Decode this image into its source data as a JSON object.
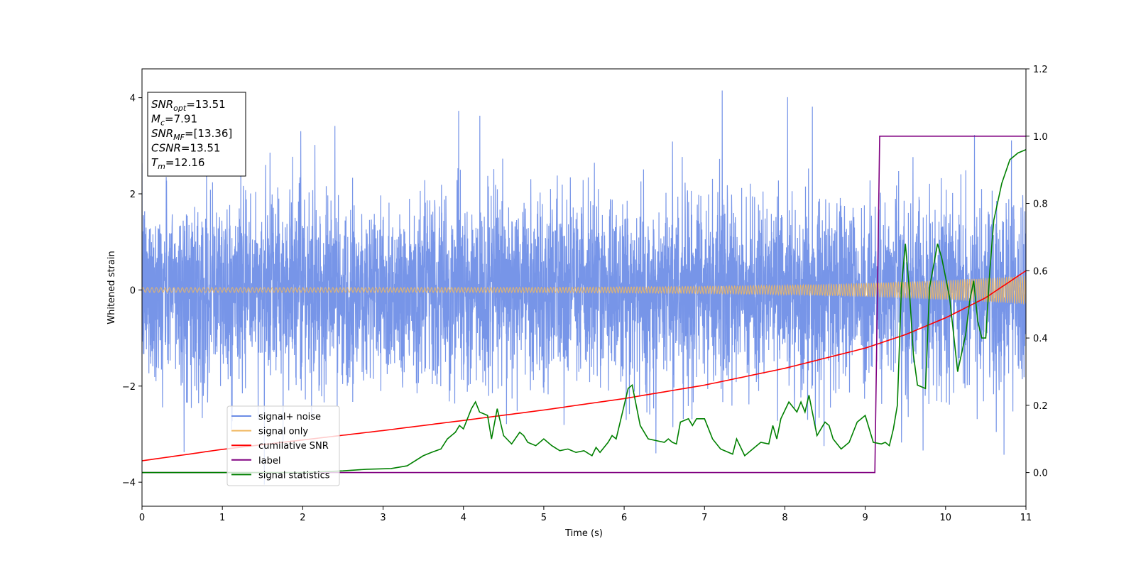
{
  "chart_data": {
    "type": "line",
    "xlabel": "Time (s)",
    "ylabel": "Whitened strain",
    "xlim": [
      0,
      11
    ],
    "ylim": [
      -4.5,
      4.6
    ],
    "y2lim": [
      -0.1,
      1.2
    ],
    "x_ticks": [
      "0",
      "1",
      "2",
      "3",
      "4",
      "5",
      "6",
      "7",
      "8",
      "9",
      "10",
      "11"
    ],
    "y_ticks": [
      "−4",
      "−2",
      "0",
      "2",
      "4"
    ],
    "y_tick_values": [
      -4,
      -2,
      0,
      2,
      4
    ],
    "y2_ticks": [
      "0.0",
      "0.2",
      "0.4",
      "0.6",
      "0.8",
      "1.0",
      "1.2"
    ],
    "y2_tick_values": [
      0,
      0.2,
      0.4,
      0.6,
      0.8,
      1.0,
      1.2
    ],
    "grid": false,
    "legend_position": "bottom-left",
    "colors": {
      "noise": "#6b8ce6",
      "signal": "#f0b860",
      "snr": "#ff0000",
      "label": "#800080",
      "stats": "#008000"
    },
    "stats_box": [
      {
        "sym": "SNR",
        "sub": "opt",
        "value": "=13.51"
      },
      {
        "sym": "M",
        "sub": "c",
        "value": "=7.91"
      },
      {
        "sym": "SNR",
        "sub": "MF",
        "value": "=[13.36]"
      },
      {
        "sym": "CSNR",
        "sub": "",
        "value": "=13.51"
      },
      {
        "sym": "T",
        "sub": "m",
        "value": "=12.16"
      }
    ],
    "series": [
      {
        "name": "signal+ noise",
        "axis": "left",
        "envelope": "noise, std ≈ 0.95, peaks ≈ ±4"
      },
      {
        "name": "signal only",
        "axis": "left",
        "envelope": "chirp, amplitude 0.05 at t=0 rising to 0.3 at t=11"
      },
      {
        "name": "cumilative SNR",
        "axis": "right",
        "x": [
          0,
          1,
          2,
          3,
          4,
          5,
          6,
          7,
          8,
          9,
          9.5,
          10,
          10.5,
          11
        ],
        "y": [
          0.035,
          0.069,
          0.097,
          0.125,
          0.155,
          0.186,
          0.22,
          0.26,
          0.31,
          0.37,
          0.41,
          0.46,
          0.52,
          0.6
        ]
      },
      {
        "name": "label",
        "axis": "right",
        "x": [
          0,
          9.12,
          9.18,
          11
        ],
        "y": [
          0,
          0,
          1,
          1
        ]
      },
      {
        "name": "signal statistics",
        "axis": "right",
        "x": [
          0,
          1,
          2,
          2.5,
          2.8,
          3.1,
          3.3,
          3.5,
          3.6,
          3.72,
          3.8,
          3.9,
          3.95,
          4.0,
          4.1,
          4.15,
          4.2,
          4.3,
          4.35,
          4.42,
          4.5,
          4.6,
          4.7,
          4.75,
          4.8,
          4.9,
          5.0,
          5.1,
          5.2,
          5.3,
          5.4,
          5.5,
          5.6,
          5.65,
          5.7,
          5.8,
          5.85,
          5.9,
          6.0,
          6.05,
          6.1,
          6.2,
          6.3,
          6.4,
          6.5,
          6.55,
          6.6,
          6.65,
          6.7,
          6.8,
          6.85,
          6.9,
          7.0,
          7.1,
          7.2,
          7.35,
          7.4,
          7.5,
          7.6,
          7.7,
          7.8,
          7.85,
          7.9,
          7.95,
          8.05,
          8.15,
          8.2,
          8.25,
          8.3,
          8.4,
          8.5,
          8.55,
          8.6,
          8.7,
          8.8,
          8.9,
          9.0,
          9.1,
          9.2,
          9.25,
          9.3,
          9.35,
          9.4,
          9.45,
          9.5,
          9.55,
          9.6,
          9.65,
          9.75,
          9.8,
          9.9,
          9.95,
          10.05,
          10.15,
          10.25,
          10.3,
          10.35,
          10.4,
          10.45,
          10.5,
          10.55,
          10.6,
          10.7,
          10.8,
          10.9,
          11.0
        ],
        "y": [
          0.0,
          0.0,
          0.0,
          0.005,
          0.01,
          0.012,
          0.02,
          0.05,
          0.06,
          0.07,
          0.1,
          0.12,
          0.14,
          0.13,
          0.19,
          0.21,
          0.18,
          0.17,
          0.1,
          0.19,
          0.11,
          0.085,
          0.12,
          0.11,
          0.09,
          0.08,
          0.1,
          0.08,
          0.065,
          0.07,
          0.06,
          0.065,
          0.05,
          0.075,
          0.06,
          0.09,
          0.11,
          0.1,
          0.2,
          0.25,
          0.26,
          0.14,
          0.1,
          0.095,
          0.09,
          0.1,
          0.09,
          0.085,
          0.15,
          0.16,
          0.14,
          0.16,
          0.16,
          0.1,
          0.07,
          0.055,
          0.1,
          0.05,
          0.07,
          0.09,
          0.085,
          0.14,
          0.1,
          0.16,
          0.21,
          0.18,
          0.21,
          0.18,
          0.23,
          0.11,
          0.15,
          0.14,
          0.1,
          0.07,
          0.09,
          0.15,
          0.17,
          0.09,
          0.085,
          0.09,
          0.08,
          0.13,
          0.2,
          0.55,
          0.68,
          0.54,
          0.35,
          0.26,
          0.25,
          0.55,
          0.68,
          0.64,
          0.52,
          0.3,
          0.41,
          0.51,
          0.57,
          0.45,
          0.4,
          0.4,
          0.6,
          0.75,
          0.86,
          0.93,
          0.95,
          0.96
        ]
      }
    ]
  }
}
